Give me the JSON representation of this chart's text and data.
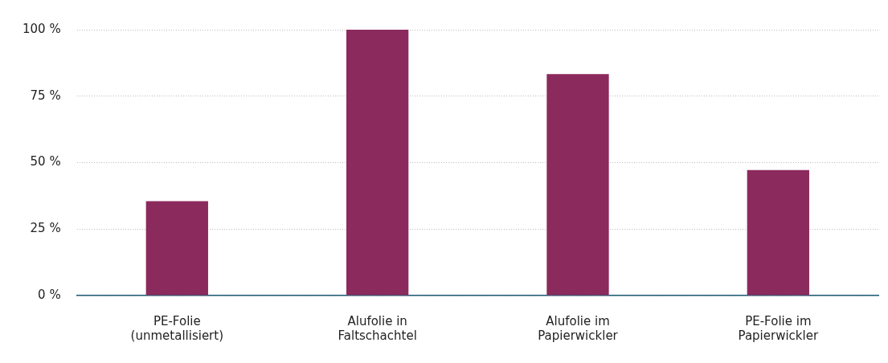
{
  "chart_data": {
    "type": "bar",
    "categories": [
      "PE-Folie (unmetallisiert)",
      "Alufolie in Faltschachtel",
      "Alufolie im Papierwickler",
      "PE-Folie im Papierwickler"
    ],
    "values": [
      35.5,
      100,
      83.3,
      47.2
    ],
    "color": "#8b2a5c",
    "ylim": [
      0,
      100
    ],
    "yticks": [
      {
        "value": 0,
        "label": "0 %"
      },
      {
        "value": 25,
        "label": "25 %"
      },
      {
        "value": 50,
        "label": "50 %"
      },
      {
        "value": 75,
        "label": "75 %"
      },
      {
        "value": 100,
        "label": "100 %"
      }
    ],
    "grid": "y"
  }
}
